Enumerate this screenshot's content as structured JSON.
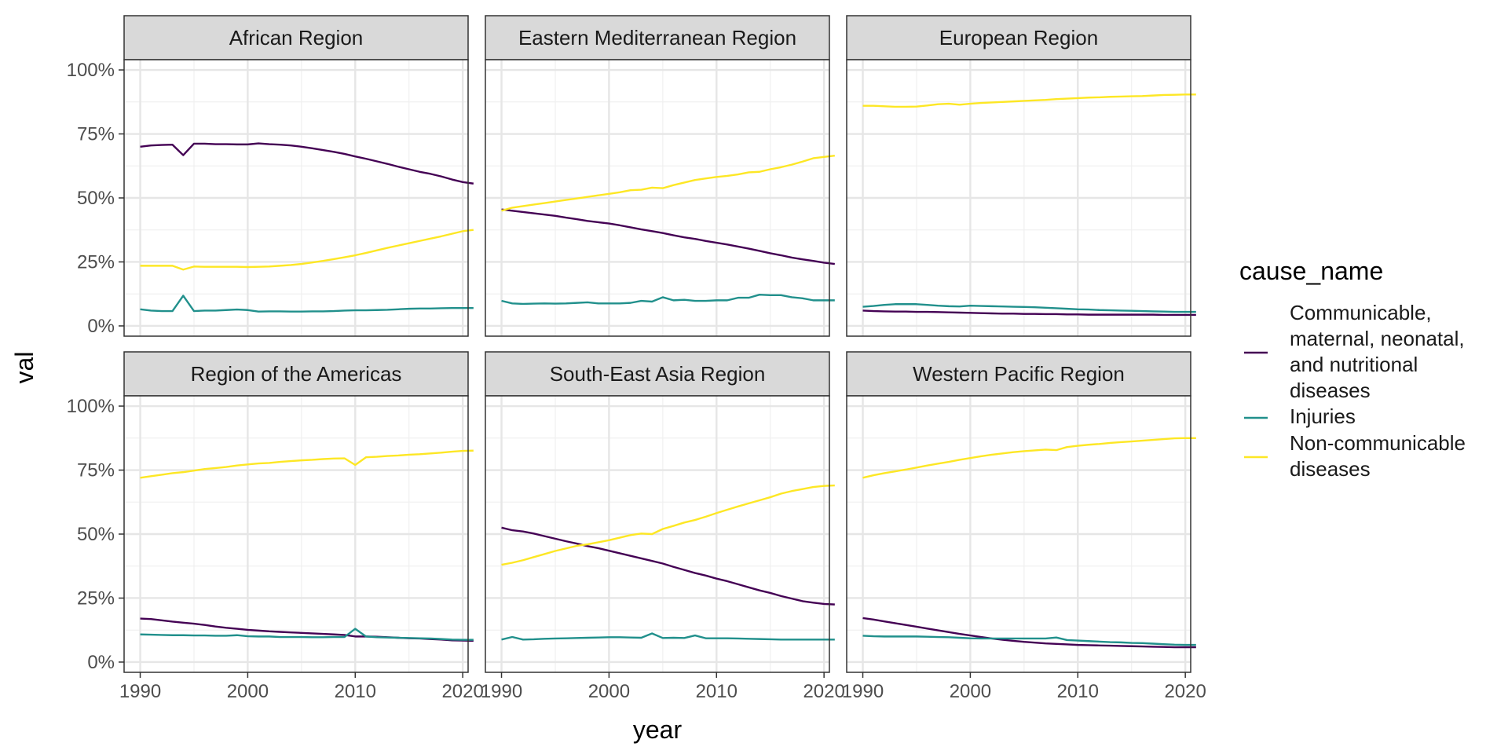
{
  "chart_data": {
    "type": "line",
    "xlabel": "year",
    "ylabel": "val",
    "x_ticks": [
      1990,
      2000,
      2010,
      2020
    ],
    "y_ticks": [
      "0%",
      "25%",
      "50%",
      "75%",
      "100%"
    ],
    "xlim": [
      1988.5,
      2020.5
    ],
    "ylim": [
      -0.04,
      1.04
    ],
    "x_start": 1990,
    "grid": true,
    "legend": {
      "title": "cause_name",
      "placement": "right",
      "entries": [
        {
          "label": [
            "Communicable,",
            "maternal, neonatal,",
            "and nutritional",
            "diseases"
          ],
          "color": "#440154"
        },
        {
          "label": [
            "Injuries"
          ],
          "color": "#21908C"
        },
        {
          "label": [
            "Non-communicable",
            "diseases"
          ],
          "color": "#FDE725"
        }
      ]
    },
    "panels": [
      {
        "title": "African Region",
        "series": [
          {
            "cause": 0,
            "values": [
              0.7,
              0.705,
              0.707,
              0.708,
              0.667,
              0.712,
              0.712,
              0.71,
              0.71,
              0.709,
              0.709,
              0.713,
              0.71,
              0.708,
              0.705,
              0.7,
              0.694,
              0.687,
              0.68,
              0.672,
              0.662,
              0.653,
              0.643,
              0.633,
              0.622,
              0.612,
              0.602,
              0.594,
              0.584,
              0.572,
              0.562,
              0.556
            ]
          },
          {
            "cause": 1,
            "values": [
              0.065,
              0.06,
              0.058,
              0.058,
              0.118,
              0.058,
              0.06,
              0.06,
              0.062,
              0.064,
              0.062,
              0.056,
              0.057,
              0.057,
              0.056,
              0.056,
              0.057,
              0.057,
              0.058,
              0.06,
              0.061,
              0.061,
              0.062,
              0.063,
              0.065,
              0.067,
              0.068,
              0.068,
              0.069,
              0.07,
              0.07,
              0.07
            ]
          },
          {
            "cause": 2,
            "values": [
              0.235,
              0.235,
              0.235,
              0.235,
              0.22,
              0.232,
              0.231,
              0.231,
              0.231,
              0.231,
              0.23,
              0.231,
              0.232,
              0.235,
              0.238,
              0.242,
              0.248,
              0.254,
              0.261,
              0.268,
              0.276,
              0.285,
              0.295,
              0.305,
              0.314,
              0.323,
              0.332,
              0.341,
              0.35,
              0.36,
              0.37,
              0.375
            ]
          }
        ]
      },
      {
        "title": "Eastern Mediterranean Region",
        "series": [
          {
            "cause": 0,
            "values": [
              0.455,
              0.45,
              0.445,
              0.44,
              0.435,
              0.43,
              0.423,
              0.417,
              0.41,
              0.405,
              0.4,
              0.393,
              0.385,
              0.377,
              0.37,
              0.363,
              0.354,
              0.346,
              0.34,
              0.332,
              0.325,
              0.318,
              0.31,
              0.302,
              0.293,
              0.284,
              0.276,
              0.267,
              0.26,
              0.254,
              0.247,
              0.242
            ]
          },
          {
            "cause": 1,
            "values": [
              0.098,
              0.088,
              0.086,
              0.087,
              0.088,
              0.087,
              0.088,
              0.09,
              0.092,
              0.088,
              0.088,
              0.088,
              0.09,
              0.098,
              0.095,
              0.112,
              0.1,
              0.102,
              0.098,
              0.098,
              0.1,
              0.1,
              0.11,
              0.11,
              0.122,
              0.12,
              0.12,
              0.112,
              0.108,
              0.1,
              0.1,
              0.1
            ]
          },
          {
            "cause": 2,
            "values": [
              0.45,
              0.462,
              0.468,
              0.474,
              0.48,
              0.486,
              0.492,
              0.498,
              0.504,
              0.51,
              0.516,
              0.522,
              0.53,
              0.532,
              0.54,
              0.538,
              0.55,
              0.56,
              0.57,
              0.576,
              0.582,
              0.586,
              0.592,
              0.6,
              0.602,
              0.612,
              0.62,
              0.63,
              0.642,
              0.655,
              0.66,
              0.665
            ]
          }
        ]
      },
      {
        "title": "European Region",
        "series": [
          {
            "cause": 0,
            "values": [
              0.06,
              0.058,
              0.057,
              0.056,
              0.056,
              0.055,
              0.055,
              0.054,
              0.053,
              0.052,
              0.051,
              0.05,
              0.049,
              0.048,
              0.048,
              0.047,
              0.047,
              0.046,
              0.046,
              0.045,
              0.045,
              0.044,
              0.044,
              0.044,
              0.044,
              0.044,
              0.044,
              0.044,
              0.043,
              0.043,
              0.043,
              0.043
            ]
          },
          {
            "cause": 1,
            "values": [
              0.075,
              0.078,
              0.082,
              0.085,
              0.085,
              0.085,
              0.082,
              0.079,
              0.077,
              0.076,
              0.079,
              0.078,
              0.077,
              0.076,
              0.075,
              0.074,
              0.073,
              0.071,
              0.069,
              0.067,
              0.065,
              0.064,
              0.062,
              0.061,
              0.06,
              0.059,
              0.058,
              0.057,
              0.056,
              0.055,
              0.055,
              0.055
            ]
          },
          {
            "cause": 2,
            "values": [
              0.86,
              0.86,
              0.858,
              0.856,
              0.856,
              0.857,
              0.861,
              0.866,
              0.868,
              0.864,
              0.868,
              0.871,
              0.873,
              0.875,
              0.877,
              0.879,
              0.881,
              0.883,
              0.886,
              0.888,
              0.89,
              0.892,
              0.893,
              0.895,
              0.896,
              0.897,
              0.898,
              0.9,
              0.902,
              0.903,
              0.904,
              0.904
            ]
          }
        ]
      },
      {
        "title": "Region of the Americas",
        "series": [
          {
            "cause": 0,
            "values": [
              0.17,
              0.168,
              0.163,
              0.158,
              0.154,
              0.15,
              0.145,
              0.139,
              0.134,
              0.13,
              0.126,
              0.123,
              0.12,
              0.118,
              0.116,
              0.114,
              0.112,
              0.11,
              0.108,
              0.106,
              0.1,
              0.1,
              0.099,
              0.097,
              0.095,
              0.093,
              0.092,
              0.09,
              0.088,
              0.085,
              0.084,
              0.083
            ]
          },
          {
            "cause": 1,
            "values": [
              0.108,
              0.107,
              0.106,
              0.105,
              0.105,
              0.104,
              0.104,
              0.103,
              0.103,
              0.105,
              0.101,
              0.1,
              0.1,
              0.098,
              0.098,
              0.098,
              0.097,
              0.097,
              0.098,
              0.098,
              0.13,
              0.1,
              0.097,
              0.096,
              0.095,
              0.094,
              0.093,
              0.092,
              0.09,
              0.088,
              0.087,
              0.087
            ]
          },
          {
            "cause": 2,
            "values": [
              0.72,
              0.726,
              0.732,
              0.738,
              0.742,
              0.748,
              0.754,
              0.758,
              0.762,
              0.768,
              0.772,
              0.776,
              0.778,
              0.782,
              0.785,
              0.788,
              0.79,
              0.793,
              0.795,
              0.796,
              0.77,
              0.8,
              0.802,
              0.805,
              0.807,
              0.81,
              0.812,
              0.815,
              0.818,
              0.822,
              0.825,
              0.826
            ]
          }
        ]
      },
      {
        "title": "South-East Asia Region",
        "series": [
          {
            "cause": 0,
            "values": [
              0.525,
              0.515,
              0.51,
              0.502,
              0.492,
              0.482,
              0.472,
              0.463,
              0.453,
              0.445,
              0.435,
              0.425,
              0.415,
              0.405,
              0.395,
              0.385,
              0.372,
              0.36,
              0.348,
              0.338,
              0.326,
              0.316,
              0.304,
              0.292,
              0.28,
              0.27,
              0.258,
              0.248,
              0.238,
              0.232,
              0.227,
              0.225
            ]
          },
          {
            "cause": 1,
            "values": [
              0.088,
              0.098,
              0.088,
              0.089,
              0.091,
              0.092,
              0.093,
              0.094,
              0.095,
              0.096,
              0.097,
              0.097,
              0.096,
              0.095,
              0.112,
              0.094,
              0.095,
              0.094,
              0.104,
              0.093,
              0.093,
              0.093,
              0.092,
              0.091,
              0.09,
              0.089,
              0.088,
              0.088,
              0.088,
              0.088,
              0.088,
              0.088
            ]
          },
          {
            "cause": 2,
            "values": [
              0.38,
              0.388,
              0.398,
              0.41,
              0.422,
              0.434,
              0.444,
              0.454,
              0.46,
              0.468,
              0.476,
              0.486,
              0.496,
              0.502,
              0.5,
              0.52,
              0.532,
              0.545,
              0.555,
              0.568,
              0.582,
              0.595,
              0.608,
              0.62,
              0.632,
              0.644,
              0.658,
              0.668,
              0.676,
              0.684,
              0.688,
              0.69
            ]
          }
        ]
      },
      {
        "title": "Western Pacific Region",
        "series": [
          {
            "cause": 0,
            "values": [
              0.172,
              0.166,
              0.159,
              0.152,
              0.145,
              0.138,
              0.131,
              0.124,
              0.117,
              0.11,
              0.104,
              0.098,
              0.092,
              0.087,
              0.083,
              0.079,
              0.076,
              0.073,
              0.071,
              0.069,
              0.067,
              0.066,
              0.065,
              0.064,
              0.063,
              0.062,
              0.061,
              0.06,
              0.059,
              0.058,
              0.058,
              0.058
            ]
          },
          {
            "cause": 1,
            "values": [
              0.103,
              0.101,
              0.1,
              0.1,
              0.1,
              0.1,
              0.099,
              0.098,
              0.097,
              0.095,
              0.093,
              0.092,
              0.092,
              0.092,
              0.092,
              0.092,
              0.092,
              0.092,
              0.096,
              0.086,
              0.084,
              0.082,
              0.08,
              0.078,
              0.077,
              0.075,
              0.074,
              0.072,
              0.07,
              0.068,
              0.067,
              0.067
            ]
          },
          {
            "cause": 2,
            "values": [
              0.72,
              0.73,
              0.738,
              0.745,
              0.752,
              0.76,
              0.768,
              0.775,
              0.782,
              0.79,
              0.797,
              0.804,
              0.81,
              0.815,
              0.82,
              0.824,
              0.827,
              0.83,
              0.828,
              0.84,
              0.845,
              0.849,
              0.852,
              0.856,
              0.859,
              0.862,
              0.865,
              0.868,
              0.871,
              0.874,
              0.875,
              0.875
            ]
          }
        ]
      }
    ]
  }
}
